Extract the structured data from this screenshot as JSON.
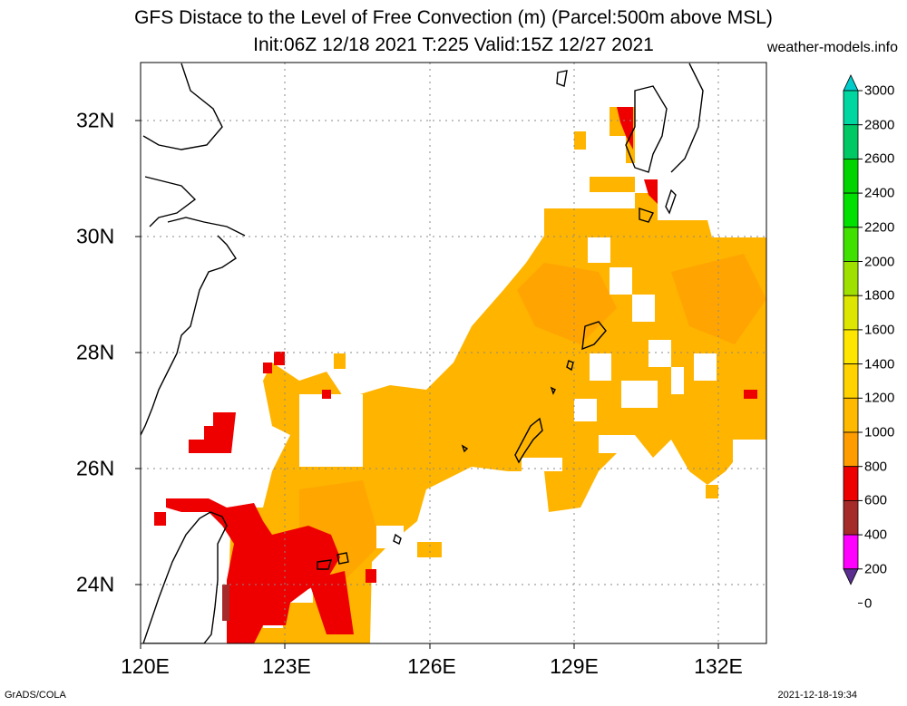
{
  "header": {
    "title_line1": "GFS Distace to the Level of Free Convection (m) (Parcel:500m above MSL)",
    "title_line2": "Init:06Z 12/18 2021 T:225 Valid:15Z 12/27 2021",
    "credit": "weather-models.info"
  },
  "axes": {
    "x_ticks": [
      "120E",
      "123E",
      "126E",
      "129E",
      "132E"
    ],
    "y_ticks": [
      "32N",
      "30N",
      "28N",
      "26N",
      "24N"
    ],
    "lon_range": [
      120,
      133
    ],
    "lat_range": [
      23,
      33
    ]
  },
  "colorbar": {
    "labels": [
      "3000",
      "2800",
      "2600",
      "2400",
      "2200",
      "2000",
      "1800",
      "1600",
      "1400",
      "1200",
      "1000",
      "800",
      "600",
      "400",
      "200",
      "0"
    ],
    "colors": [
      "#00cccc",
      "#00d6a0",
      "#00c864",
      "#00d400",
      "#00e000",
      "#40e000",
      "#a0e000",
      "#dce600",
      "#ffe600",
      "#ffd200",
      "#ffba00",
      "#ff9c00",
      "#ee0000",
      "#a52a2a",
      "#ff00ff",
      "#5a2d91"
    ]
  },
  "footer": {
    "left": "GrADS/COLA",
    "right": "2021-12-18-19:34"
  },
  "chart_data": {
    "type": "heatmap",
    "variable": "Distace to the Level of Free Convection (m)",
    "levels": [
      0,
      200,
      400,
      600,
      800,
      1000,
      1200,
      1400,
      1600,
      1800,
      2000,
      2200,
      2400,
      2600,
      2800,
      3000
    ],
    "dominant_range_m": [
      800,
      1000
    ],
    "low_values_region": "near Taiwan / 120E-125E, 23N-27N, values 400-600"
  }
}
